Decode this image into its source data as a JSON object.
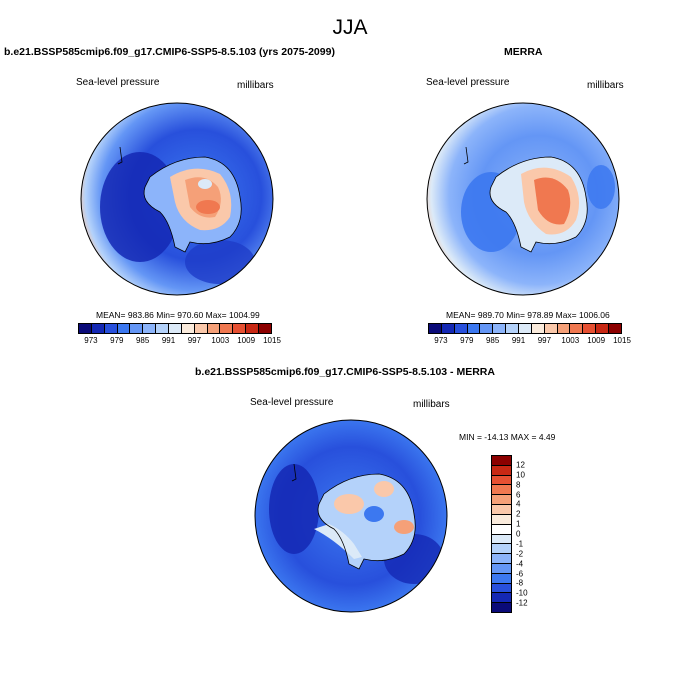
{
  "title": "JJA",
  "panels": [
    {
      "title": "b.e21.BSSP585cmip6.f09_g17.CMIP6-SSP5-8.5.103 (yrs 2075-2099)",
      "left_label": "Sea-level pressure",
      "right_label": "millibars",
      "stats": "MEAN= 983.86  Min= 970.60  Max= 1004.99"
    },
    {
      "title": "MERRA",
      "left_label": "Sea-level pressure",
      "right_label": "millibars",
      "stats": "MEAN= 989.70  Min= 978.89  Max= 1006.06"
    },
    {
      "title": "b.e21.BSSP585cmip6.f09_g17.CMIP6-SSP5-8.5.103 - MERRA",
      "left_label": "Sea-level pressure",
      "right_label": "millibars",
      "stats": "MIN = -14.13 MAX =   4.49"
    }
  ],
  "colorbar_abs": {
    "labels": [
      "973",
      "979",
      "985",
      "991",
      "997",
      "1003",
      "1009",
      "1015"
    ],
    "colors": [
      "#0a0a78",
      "#1428b4",
      "#2850dc",
      "#3c78f0",
      "#6496f5",
      "#8cb4fa",
      "#b4d2fa",
      "#dceaf8",
      "#faebdc",
      "#fac8aa",
      "#f5a078",
      "#f07850",
      "#e65032",
      "#c82814",
      "#8c0000"
    ]
  },
  "colorbar_diff": {
    "labels": [
      "12",
      "10",
      "8",
      "6",
      "4",
      "2",
      "1",
      "0",
      "-1",
      "-2",
      "-4",
      "-6",
      "-8",
      "-10",
      "-12"
    ],
    "colors": [
      "#8c0000",
      "#c82814",
      "#e65032",
      "#f07850",
      "#f5a078",
      "#fac8aa",
      "#faebdc",
      "#ffffff",
      "#dceaf8",
      "#b4d2fa",
      "#8cb4fa",
      "#6496f5",
      "#3c78f0",
      "#2850dc",
      "#1428b4",
      "#0a0a78"
    ]
  }
}
